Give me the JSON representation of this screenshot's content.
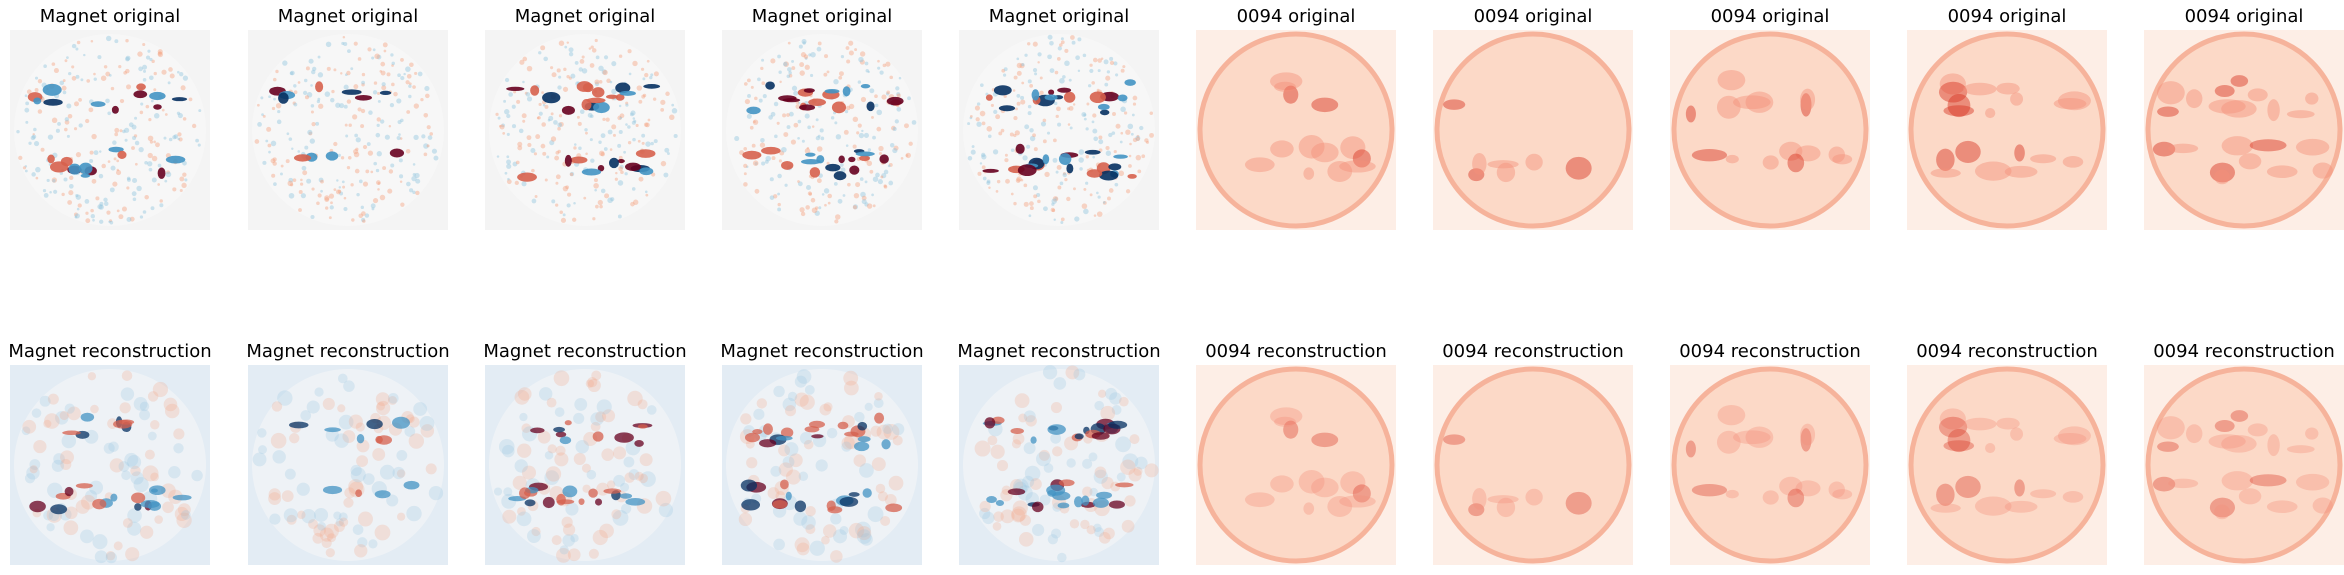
{
  "figure": {
    "rows": [
      {
        "id": "original",
        "panels": [
          {
            "title": "Magnet original",
            "colormap": "RdBu",
            "background": "#f4f4f4",
            "seed": 11,
            "activity": 0.55,
            "kind": "magnet"
          },
          {
            "title": "Magnet original",
            "colormap": "RdBu",
            "background": "#f4f4f4",
            "seed": 23,
            "activity": 0.15,
            "kind": "magnet"
          },
          {
            "title": "Magnet original",
            "colormap": "RdBu",
            "background": "#f4f4f4",
            "seed": 37,
            "activity": 0.7,
            "kind": "magnet"
          },
          {
            "title": "Magnet original",
            "colormap": "RdBu",
            "background": "#f4f4f4",
            "seed": 41,
            "activity": 0.9,
            "kind": "magnet"
          },
          {
            "title": "Magnet original",
            "colormap": "RdBu",
            "background": "#f4f4f4",
            "seed": 53,
            "activity": 1.0,
            "kind": "magnet"
          },
          {
            "title": "0094 original",
            "colormap": "Reds",
            "background": "#fdeee6",
            "seed": 61,
            "activity": 0.5,
            "kind": "euv"
          },
          {
            "title": "0094 original",
            "colormap": "Reds",
            "background": "#fdeee6",
            "seed": 67,
            "activity": 0.15,
            "kind": "euv"
          },
          {
            "title": "0094 original",
            "colormap": "Reds",
            "background": "#fdeee6",
            "seed": 71,
            "activity": 0.6,
            "kind": "euv"
          },
          {
            "title": "0094 original",
            "colormap": "Reds",
            "background": "#fdeee6",
            "seed": 79,
            "activity": 0.75,
            "kind": "euv"
          },
          {
            "title": "0094 original",
            "colormap": "Reds",
            "background": "#fdeee6",
            "seed": 83,
            "activity": 0.95,
            "kind": "euv"
          }
        ]
      },
      {
        "id": "reconstruction",
        "panels": [
          {
            "title": "Magnet reconstruction",
            "colormap": "RdBu",
            "background": "#e3ecf4",
            "seed": 11,
            "activity": 0.55,
            "kind": "magnet"
          },
          {
            "title": "Magnet reconstruction",
            "colormap": "RdBu",
            "background": "#e3ecf4",
            "seed": 23,
            "activity": 0.15,
            "kind": "magnet"
          },
          {
            "title": "Magnet reconstruction",
            "colormap": "RdBu",
            "background": "#e3ecf4",
            "seed": 37,
            "activity": 0.7,
            "kind": "magnet"
          },
          {
            "title": "Magnet reconstruction",
            "colormap": "RdBu",
            "background": "#e3ecf4",
            "seed": 41,
            "activity": 0.9,
            "kind": "magnet"
          },
          {
            "title": "Magnet reconstruction",
            "colormap": "RdBu",
            "background": "#e3ecf4",
            "seed": 53,
            "activity": 1.0,
            "kind": "magnet"
          },
          {
            "title": "0094 reconstruction",
            "colormap": "Reds",
            "background": "#fdeee6",
            "seed": 61,
            "activity": 0.5,
            "kind": "euv"
          },
          {
            "title": "0094 reconstruction",
            "colormap": "Reds",
            "background": "#fdeee6",
            "seed": 67,
            "activity": 0.15,
            "kind": "euv"
          },
          {
            "title": "0094 reconstruction",
            "colormap": "Reds",
            "background": "#fdeee6",
            "seed": 71,
            "activity": 0.6,
            "kind": "euv"
          },
          {
            "title": "0094 reconstruction",
            "colormap": "Reds",
            "background": "#fdeee6",
            "seed": 79,
            "activity": 0.75,
            "kind": "euv"
          },
          {
            "title": "0094 reconstruction",
            "colormap": "Reds",
            "background": "#fdeee6",
            "seed": 83,
            "activity": 0.95,
            "kind": "euv"
          }
        ]
      }
    ],
    "colors": {
      "negative": "#053061",
      "negative_mid": "#4393c3",
      "neutral": "#f7f7f7",
      "positive_mid": "#d6604d",
      "positive": "#67001f",
      "euv_faint": "#fcd9c7",
      "euv_mid": "#f4907a",
      "euv_strong": "#d7301f",
      "euv_limb": "#f6b39b"
    }
  }
}
